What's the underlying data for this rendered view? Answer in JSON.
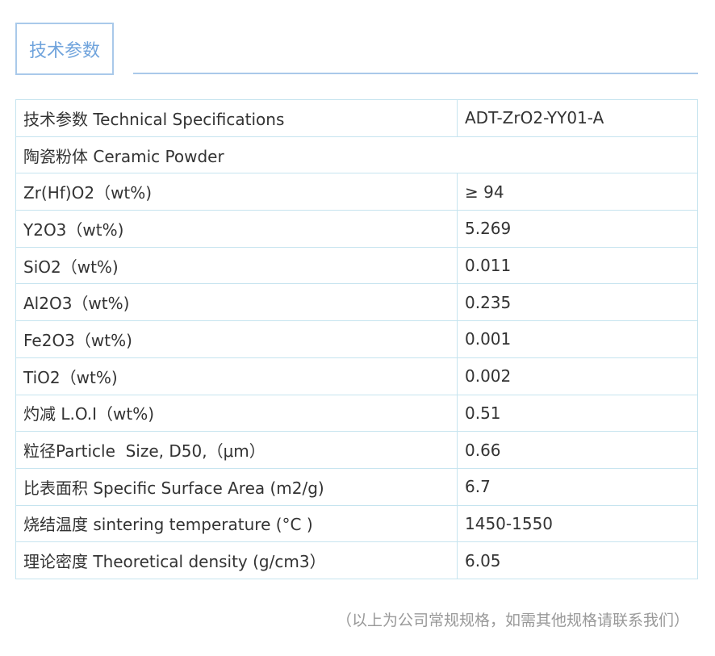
{
  "header": {
    "tab": "技术参数"
  },
  "table": {
    "rows": [
      [
        "技术参数 Technical Specifications",
        "ADT-ZrO2-YY01-A"
      ],
      [
        "陶瓷粉体 Ceramic Powder"
      ],
      [
        "Zr(Hf)O2（wt%)",
        "≥ 94"
      ],
      [
        "Y2O3（wt%)",
        "5.269"
      ],
      [
        "SiO2（wt%)",
        "0.011"
      ],
      [
        "Al2O3（wt%)",
        "0.235"
      ],
      [
        "Fe2O3（wt%)",
        "0.001"
      ],
      [
        "TiO2（wt%)",
        "0.002"
      ],
      [
        "灼减 L.O.I（wt%)",
        "0.51"
      ],
      [
        "粒径Particle  Size, D50,（μm）",
        "0.66"
      ],
      [
        "比表面积 Specific Surface Area (m2/g)",
        "6.7"
      ],
      [
        "烧结温度 sintering temperature (°C )",
        "1450-1550"
      ],
      [
        "理论密度 Theoretical density (g/cm3）",
        "6.05"
      ]
    ]
  },
  "footnote": "（以上为公司常规规格，如需其他规格请联系我们）"
}
